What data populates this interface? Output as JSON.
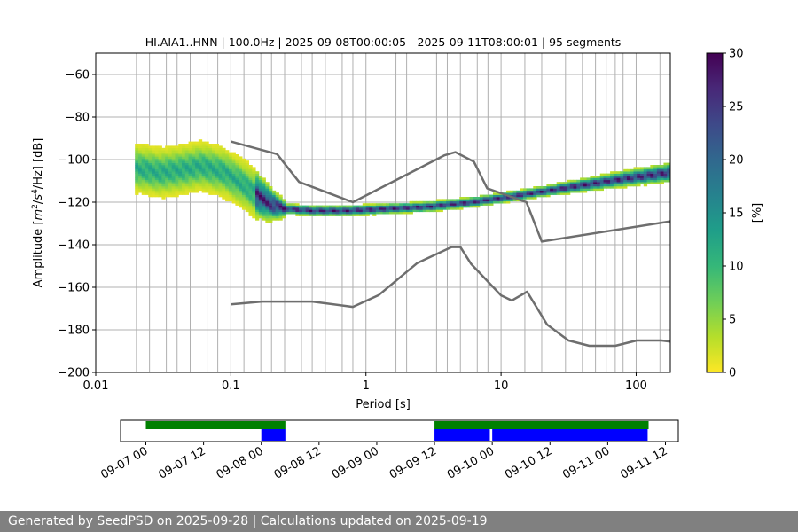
{
  "chart_data": {
    "type": "heatmap",
    "title": "HI.AIA1..HNN | 100.0Hz | 2025-09-08T00:00:05 - 2025-09-11T08:00:01 | 95 segments",
    "xlabel": "Period [s]",
    "ylabel_parts": [
      "Amplitude [",
      "m",
      "2",
      "/",
      "s",
      "4",
      "/Hz] [dB]"
    ],
    "x_scale": "log",
    "xlim": [
      0.01,
      179
    ],
    "ylim": [
      -200,
      -50
    ],
    "x_ticks": [
      {
        "value": 0.01,
        "label": "0.01"
      },
      {
        "value": 0.1,
        "label": "0.1"
      },
      {
        "value": 1,
        "label": "1"
      },
      {
        "value": 10,
        "label": "10"
      },
      {
        "value": 100,
        "label": "100"
      }
    ],
    "y_ticks": [
      {
        "value": -60,
        "label": "−60"
      },
      {
        "value": -80,
        "label": "−80"
      },
      {
        "value": -100,
        "label": "−100"
      },
      {
        "value": -120,
        "label": "−120"
      },
      {
        "value": -140,
        "label": "−140"
      },
      {
        "value": -160,
        "label": "−160"
      },
      {
        "value": -180,
        "label": "−180"
      },
      {
        "value": -200,
        "label": "−200"
      }
    ],
    "period_gridlines": [
      0.02,
      0.025,
      0.0333,
      0.04,
      0.05,
      0.0667,
      0.08,
      0.1,
      0.125,
      0.1667,
      0.2,
      0.25,
      0.333,
      0.4,
      0.5,
      0.667,
      0.8,
      1.0,
      1.25,
      1.667,
      2.0,
      3.333,
      4.0,
      5.0,
      6.667,
      8.0,
      10.0,
      15.0,
      20.0,
      30.0,
      40.0,
      50.0,
      60.0,
      70.0,
      80.0,
      100.0,
      150.0
    ],
    "pdf_mode": [
      {
        "x": 0.02,
        "y": -104
      },
      {
        "x": 0.03,
        "y": -106
      },
      {
        "x": 0.04,
        "y": -105
      },
      {
        "x": 0.05,
        "y": -104
      },
      {
        "x": 0.06,
        "y": -103
      },
      {
        "x": 0.07,
        "y": -104
      },
      {
        "x": 0.09,
        "y": -106
      },
      {
        "x": 0.12,
        "y": -111
      },
      {
        "x": 0.16,
        "y": -117
      },
      {
        "x": 0.2,
        "y": -121
      },
      {
        "x": 0.25,
        "y": -123
      },
      {
        "x": 0.4,
        "y": -124
      },
      {
        "x": 0.7,
        "y": -124
      },
      {
        "x": 1.5,
        "y": -123
      },
      {
        "x": 3,
        "y": -122
      },
      {
        "x": 6,
        "y": -120
      },
      {
        "x": 10,
        "y": -118
      },
      {
        "x": 20,
        "y": -115
      },
      {
        "x": 40,
        "y": -112
      },
      {
        "x": 80,
        "y": -109
      },
      {
        "x": 179,
        "y": -106
      }
    ],
    "nhnm": [
      {
        "x": 0.1,
        "y": -91.5
      },
      {
        "x": 0.22,
        "y": -97.4
      },
      {
        "x": 0.32,
        "y": -110.5
      },
      {
        "x": 0.8,
        "y": -120
      },
      {
        "x": 3.8,
        "y": -98
      },
      {
        "x": 4.6,
        "y": -96.5
      },
      {
        "x": 6.3,
        "y": -101
      },
      {
        "x": 7.9,
        "y": -113.5
      },
      {
        "x": 15.4,
        "y": -120
      },
      {
        "x": 20,
        "y": -138.5
      },
      {
        "x": 179,
        "y": -129
      }
    ],
    "nlnm": [
      {
        "x": 0.1,
        "y": -168
      },
      {
        "x": 0.17,
        "y": -166.7
      },
      {
        "x": 0.4,
        "y": -166.7
      },
      {
        "x": 0.8,
        "y": -169.2
      },
      {
        "x": 1.24,
        "y": -163.7
      },
      {
        "x": 2.4,
        "y": -148.6
      },
      {
        "x": 4.3,
        "y": -141.1
      },
      {
        "x": 5,
        "y": -141.1
      },
      {
        "x": 6,
        "y": -149
      },
      {
        "x": 10,
        "y": -163.8
      },
      {
        "x": 12,
        "y": -166.2
      },
      {
        "x": 15.6,
        "y": -162.1
      },
      {
        "x": 21.9,
        "y": -177.5
      },
      {
        "x": 31.6,
        "y": -185
      },
      {
        "x": 45,
        "y": -187.5
      },
      {
        "x": 70,
        "y": -187.5
      },
      {
        "x": 101,
        "y": -185
      },
      {
        "x": 154,
        "y": -185
      },
      {
        "x": 179,
        "y": -185.5
      }
    ],
    "colorbar": {
      "label": "[%]",
      "range": [
        0,
        30
      ],
      "ticks": [
        {
          "value": 0,
          "label": "0"
        },
        {
          "value": 5,
          "label": "5"
        },
        {
          "value": 10,
          "label": "10"
        },
        {
          "value": 15,
          "label": "15"
        },
        {
          "value": 20,
          "label": "20"
        },
        {
          "value": 25,
          "label": "25"
        },
        {
          "value": 30,
          "label": "30"
        }
      ],
      "colors": [
        "#fde725",
        "#b5de2b",
        "#6ece58",
        "#35b779",
        "#1f9e89",
        "#26828e",
        "#31688e",
        "#3e4989",
        "#482878",
        "#440154"
      ]
    },
    "timeline": {
      "start_hours": 0,
      "end_hours": 108,
      "ticks": [
        {
          "hours": 0,
          "label": "09-07 00"
        },
        {
          "hours": 12,
          "label": "09-07 12"
        },
        {
          "hours": 24,
          "label": "09-08 00"
        },
        {
          "hours": 36,
          "label": "09-08 12"
        },
        {
          "hours": 48,
          "label": "09-09 00"
        },
        {
          "hours": 60,
          "label": "09-09 12"
        },
        {
          "hours": 72,
          "label": "09-10 00"
        },
        {
          "hours": 84,
          "label": "09-10 12"
        },
        {
          "hours": 96,
          "label": "09-11 00"
        },
        {
          "hours": 108,
          "label": "09-11 12"
        }
      ],
      "green_bars": [
        {
          "start": 0,
          "end": 29
        },
        {
          "start": 60,
          "end": 104.5
        }
      ],
      "blue_bars": [
        {
          "start": 24,
          "end": 29
        },
        {
          "start": 60,
          "end": 71.5
        },
        {
          "start": 72,
          "end": 104.3
        }
      ],
      "colors": {
        "green": "#008000",
        "blue": "#0000ff"
      }
    }
  },
  "footer": {
    "text": "Generated by SeedPSD on 2025-09-28 | Calculations updated on 2025-09-19"
  }
}
